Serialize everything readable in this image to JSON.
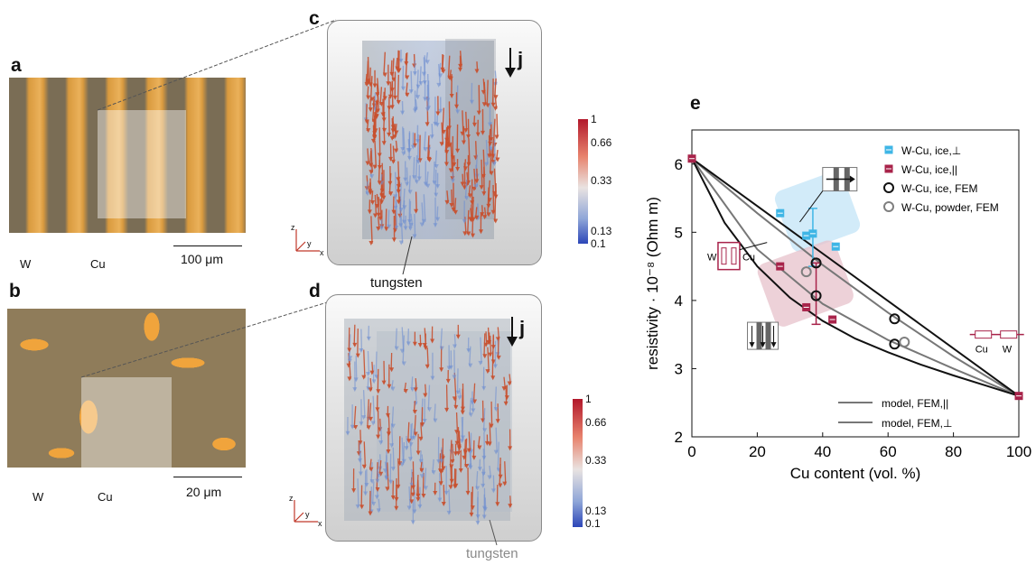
{
  "panels": {
    "a": {
      "letter": "a",
      "labels": [
        "W",
        "Cu"
      ],
      "scale_bar": "100 μm"
    },
    "b": {
      "letter": "b",
      "labels": [
        "W",
        "Cu"
      ],
      "scale_bar": "20 μm"
    },
    "c": {
      "letter": "c",
      "current_label": "j",
      "material_label": "tungsten",
      "colorbar_ticks": [
        "1",
        "0.66",
        "0.33",
        "0.13",
        "0.1"
      ],
      "axes": [
        "z",
        "y",
        "x"
      ]
    },
    "d": {
      "letter": "d",
      "current_label": "j",
      "material_label": "tungsten",
      "colorbar_ticks": [
        "1",
        "0.66",
        "0.33",
        "0.13",
        "0.1"
      ],
      "axes": [
        "z",
        "y",
        "x"
      ]
    },
    "e": {
      "letter": "e"
    }
  },
  "colors": {
    "ice_perp": "#3fb6e6",
    "ice_par": "#a8234a",
    "fem_ice": "#111111",
    "fem_powder": "#7f7f7f",
    "model_line": "#777777",
    "arrow_red": "#c8502f",
    "arrow_blue": "#6f8fd0"
  },
  "chart_data": {
    "type": "scatter",
    "xlabel": "Cu content (vol. %)",
    "ylabel": "resistivity · 10⁻⁸ (Ohm m)",
    "xlim": [
      0,
      100
    ],
    "ylim": [
      2,
      6.5
    ],
    "xticks": [
      0,
      20,
      40,
      60,
      80,
      100
    ],
    "yticks": [
      2,
      3,
      4,
      5,
      6
    ],
    "legend_position": "top-right",
    "series": [
      {
        "name": "W-Cu, ice,⊥",
        "marker": "square",
        "color": "#3fb6e6",
        "x": [
          27,
          35,
          37,
          44
        ],
        "y": [
          5.28,
          4.95,
          4.98,
          4.79
        ]
      },
      {
        "name": "W-Cu, ice,||",
        "marker": "square",
        "color": "#a8234a",
        "x": [
          0,
          27,
          35,
          43,
          100
        ],
        "y": [
          6.08,
          4.5,
          3.9,
          3.72,
          2.6
        ]
      },
      {
        "name": "W-Cu, ice, FEM",
        "marker": "circle-open",
        "color": "#111111",
        "x": [
          38,
          38,
          62,
          62
        ],
        "y": [
          4.55,
          4.07,
          3.73,
          3.36
        ]
      },
      {
        "name": "W-Cu, powder, FEM",
        "marker": "circle-open",
        "color": "#7f7f7f",
        "x": [
          35,
          65
        ],
        "y": [
          4.42,
          3.39
        ]
      }
    ],
    "error_bars": [
      {
        "x": 37,
        "y": 4.98,
        "low": 4.5,
        "high": 5.35,
        "color": "#3fb6e6"
      },
      {
        "x": 38,
        "y": 4.07,
        "low": 3.65,
        "high": 4.55,
        "color": "#a8234a"
      }
    ],
    "lines": [
      {
        "name": "model, FEM,||",
        "color": "#777777",
        "x": [
          0,
          20,
          40,
          60,
          80,
          100
        ],
        "y": [
          6.08,
          5.28,
          4.52,
          3.82,
          3.18,
          2.6
        ]
      },
      {
        "name": "model, FEM,⊥",
        "color": "#777777",
        "x": [
          0,
          20,
          40,
          60,
          80,
          100
        ],
        "y": [
          6.08,
          4.75,
          3.95,
          3.42,
          3.0,
          2.6
        ]
      },
      {
        "name": "",
        "color": "#111111",
        "x": [
          0,
          100
        ],
        "y": [
          6.08,
          2.6
        ]
      },
      {
        "name": "",
        "color": "#111111",
        "x": [
          0,
          10,
          20,
          30,
          40,
          50,
          60,
          70,
          80,
          90,
          100
        ],
        "y": [
          6.08,
          5.14,
          4.5,
          4.04,
          3.7,
          3.44,
          3.24,
          3.06,
          2.9,
          2.75,
          2.6
        ]
      }
    ],
    "inset_labels": [
      "W",
      "Cu",
      "Cu",
      "W"
    ]
  }
}
